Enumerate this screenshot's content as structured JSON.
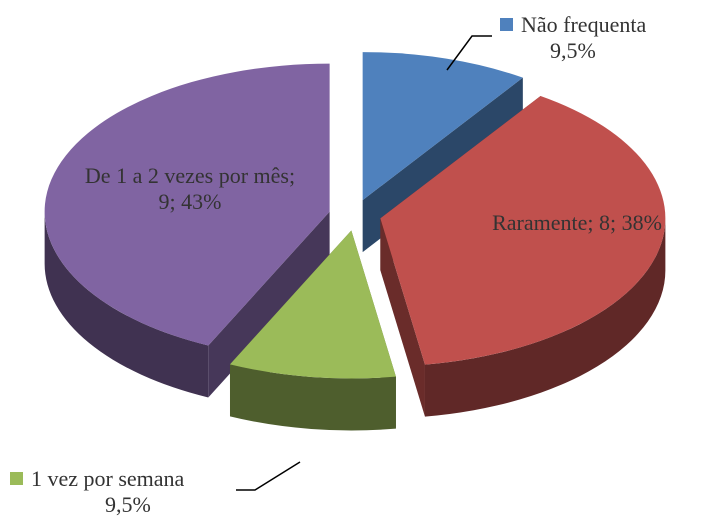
{
  "chart_data": {
    "type": "pie3d",
    "categories": [
      "Não frequenta",
      "Raramente",
      "1 vez por semana",
      "De 1 a 2 vezes por mês"
    ],
    "values": [
      9.5,
      38,
      9.5,
      43
    ],
    "value_labels": [
      "9,5%",
      "Raramente; 8; 38%",
      "9,5%",
      "De 1 a 2 vezes por mês; 9; 43%"
    ],
    "colors": [
      "#4f81bd",
      "#c0504d",
      "#9bbb59",
      "#8064a2"
    ]
  }
}
